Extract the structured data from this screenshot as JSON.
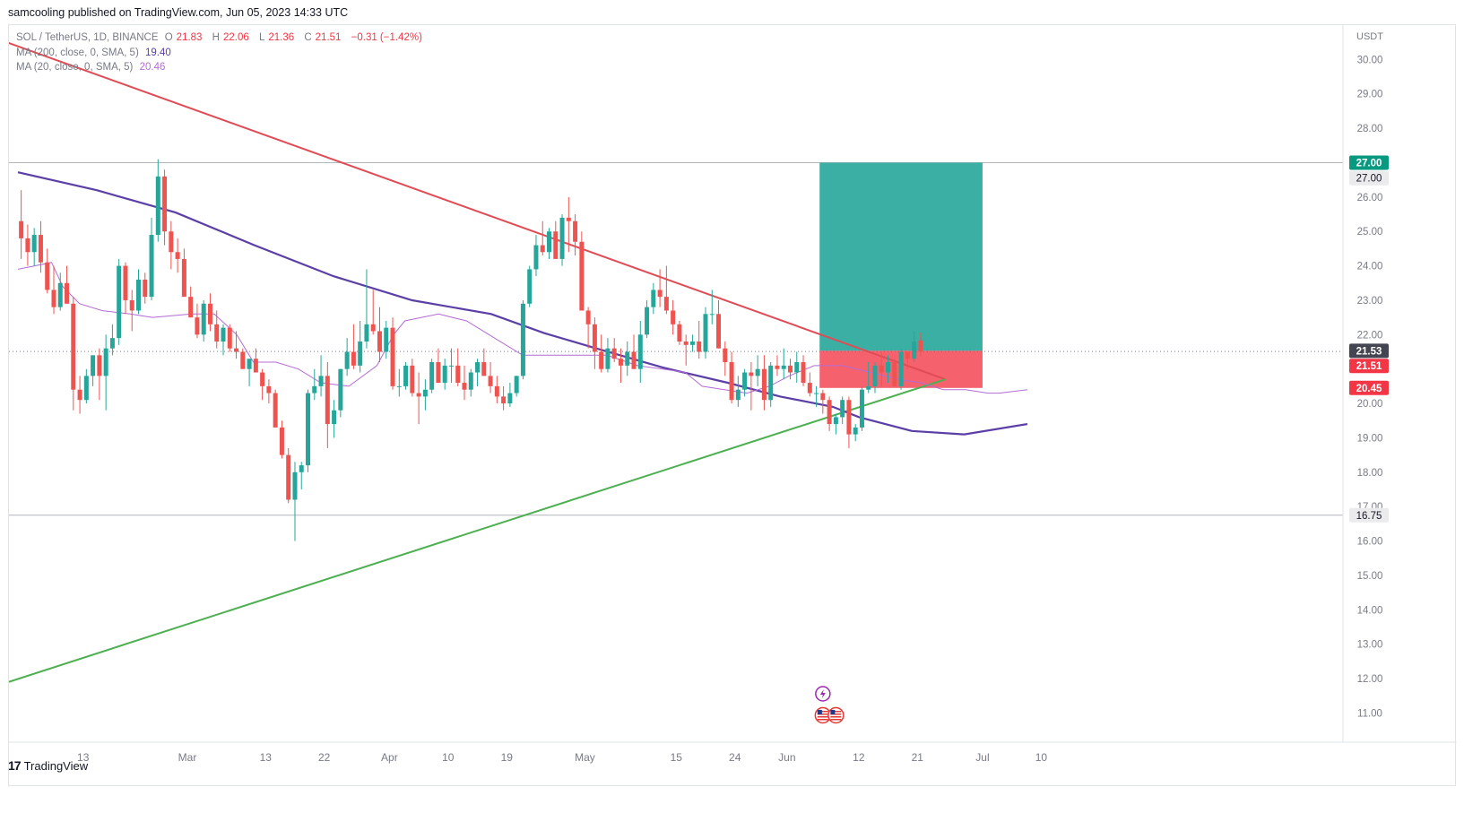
{
  "header": {
    "credit": "samcooling published on TradingView.com, Jun 05, 2023 14:33 UTC"
  },
  "legend": {
    "symbol": "SOL / TetherUS, 1D, BINANCE",
    "ohlc": {
      "o_label": "O",
      "o": "21.83",
      "h_label": "H",
      "h": "22.06",
      "l_label": "L",
      "l": "21.36",
      "c_label": "C",
      "c": "21.51",
      "change": "−0.31 (−1.42%)"
    },
    "ma200": {
      "label": "MA (200, close, 0, SMA, 5)",
      "value": "19.40"
    },
    "ma20": {
      "label": "MA (20, close, 0, SMA, 5)",
      "value": "20.46"
    }
  },
  "footer": {
    "brand": "TradingView"
  },
  "colors": {
    "up": "#26a69a",
    "down": "#ef5350",
    "resistance": "#e04c55",
    "support": "#4caf50",
    "ma200": "#5b3fa6",
    "ma20": "#b46bd6",
    "target": "#26a69a",
    "stop": "#f23645"
  },
  "chart_data": {
    "type": "candlestick",
    "currency": "USDT",
    "ylim": [
      10.15,
      31.0
    ],
    "y_ticks": [
      11,
      12,
      13,
      14,
      15,
      16,
      17,
      18,
      19,
      20,
      21,
      22,
      23,
      24,
      25,
      26,
      27,
      28,
      29,
      30
    ],
    "y_tick_labels": [
      "11.00",
      "12.00",
      "13.00",
      "14.00",
      "15.00",
      "16.00",
      "17.00",
      "18.00",
      "19.00",
      "20.00",
      "21.00",
      "22.00",
      "23.00",
      "24.00",
      "25.00",
      "26.00",
      "27.00",
      "28.00",
      "29.00",
      "30.00"
    ],
    "x_axis_labels": [
      {
        "label": "13",
        "date": "2023-02-13"
      },
      {
        "label": "Mar",
        "date": "2023-03-01"
      },
      {
        "label": "13",
        "date": "2023-03-13"
      },
      {
        "label": "22",
        "date": "2023-03-22"
      },
      {
        "label": "Apr",
        "date": "2023-04-01"
      },
      {
        "label": "10",
        "date": "2023-04-10"
      },
      {
        "label": "19",
        "date": "2023-04-19"
      },
      {
        "label": "May",
        "date": "2023-05-01"
      },
      {
        "label": "15",
        "date": "2023-05-15"
      },
      {
        "label": "24",
        "date": "2023-05-24"
      },
      {
        "label": "Jun",
        "date": "2023-06-01"
      },
      {
        "label": "12",
        "date": "2023-06-12"
      },
      {
        "label": "21",
        "date": "2023-06-21"
      },
      {
        "label": "Jul",
        "date": "2023-07-01"
      },
      {
        "label": "10",
        "date": "2023-07-10"
      }
    ],
    "start_date": "2023-02-03",
    "candles": [
      [
        25.3,
        26.2,
        24.2,
        24.8
      ],
      [
        24.8,
        25.2,
        24.0,
        24.4
      ],
      [
        24.4,
        25.1,
        24.0,
        24.9
      ],
      [
        24.9,
        25.3,
        23.8,
        24.1
      ],
      [
        24.1,
        24.5,
        23.2,
        23.3
      ],
      [
        23.3,
        24.0,
        22.6,
        22.8
      ],
      [
        22.8,
        23.8,
        22.7,
        23.5
      ],
      [
        23.5,
        24.0,
        22.9,
        22.9
      ],
      [
        22.9,
        23.1,
        19.8,
        20.4
      ],
      [
        20.4,
        20.8,
        19.7,
        20.1
      ],
      [
        20.1,
        21.0,
        20.0,
        20.8
      ],
      [
        20.8,
        21.4,
        20.5,
        21.4
      ],
      [
        21.4,
        21.6,
        20.1,
        20.8
      ],
      [
        20.8,
        22.0,
        19.8,
        21.6
      ],
      [
        21.6,
        22.3,
        21.4,
        21.9
      ],
      [
        21.9,
        24.2,
        21.7,
        24.0
      ],
      [
        24.0,
        24.1,
        22.6,
        23.0
      ],
      [
        23.0,
        23.3,
        22.1,
        22.7
      ],
      [
        22.7,
        23.9,
        22.6,
        23.6
      ],
      [
        23.6,
        23.8,
        22.9,
        23.1
      ],
      [
        23.1,
        25.4,
        23.0,
        24.9
      ],
      [
        24.9,
        27.1,
        24.7,
        26.6
      ],
      [
        26.6,
        26.8,
        24.6,
        25.0
      ],
      [
        25.0,
        25.3,
        23.9,
        24.4
      ],
      [
        24.4,
        24.8,
        23.8,
        24.2
      ],
      [
        24.2,
        24.5,
        23.3,
        23.1
      ],
      [
        23.1,
        23.4,
        22.5,
        22.5
      ],
      [
        22.5,
        22.9,
        21.9,
        22.0
      ],
      [
        22.0,
        23.0,
        21.8,
        22.9
      ],
      [
        22.9,
        23.2,
        22.1,
        22.3
      ],
      [
        22.3,
        22.7,
        21.6,
        21.8
      ],
      [
        21.8,
        22.3,
        21.4,
        22.2
      ],
      [
        22.2,
        22.3,
        21.5,
        21.6
      ],
      [
        21.6,
        22.1,
        21.3,
        21.5
      ],
      [
        21.5,
        21.6,
        21.0,
        21.0
      ],
      [
        21.0,
        21.2,
        20.5,
        21.3
      ],
      [
        21.3,
        21.6,
        20.9,
        20.9
      ],
      [
        20.9,
        21.0,
        20.1,
        20.5
      ],
      [
        20.5,
        20.7,
        20.0,
        20.3
      ],
      [
        20.3,
        20.4,
        19.5,
        19.3
      ],
      [
        19.3,
        19.5,
        18.4,
        18.5
      ],
      [
        18.5,
        18.7,
        17.1,
        17.2
      ],
      [
        17.2,
        18.3,
        16.0,
        18.0
      ],
      [
        18.0,
        18.3,
        17.5,
        18.2
      ],
      [
        18.2,
        20.4,
        18.0,
        20.3
      ],
      [
        20.3,
        21.0,
        20.1,
        20.5
      ],
      [
        20.5,
        21.4,
        20.2,
        20.8
      ],
      [
        20.8,
        21.2,
        18.7,
        19.4
      ],
      [
        19.4,
        20.1,
        19.0,
        19.8
      ],
      [
        19.8,
        21.0,
        19.6,
        21.0
      ],
      [
        21.0,
        21.9,
        20.8,
        21.5
      ],
      [
        21.5,
        22.3,
        21.0,
        21.1
      ],
      [
        21.1,
        22.4,
        20.9,
        21.8
      ],
      [
        21.8,
        23.9,
        21.6,
        22.3
      ],
      [
        22.3,
        23.3,
        22.0,
        22.1
      ],
      [
        22.1,
        22.8,
        21.2,
        21.5
      ],
      [
        21.5,
        22.4,
        21.3,
        22.2
      ],
      [
        22.2,
        22.5,
        20.4,
        20.5
      ],
      [
        20.5,
        21.0,
        20.2,
        20.5
      ],
      [
        20.5,
        21.2,
        20.4,
        21.1
      ],
      [
        21.1,
        21.3,
        20.2,
        20.3
      ],
      [
        20.3,
        20.9,
        19.4,
        20.2
      ],
      [
        20.2,
        20.7,
        19.8,
        20.4
      ],
      [
        20.4,
        21.3,
        20.3,
        21.2
      ],
      [
        21.2,
        21.6,
        20.6,
        20.6
      ],
      [
        20.6,
        21.3,
        20.4,
        21.1
      ],
      [
        21.1,
        21.6,
        20.6,
        21.1
      ],
      [
        21.1,
        21.6,
        20.5,
        20.6
      ],
      [
        20.6,
        21.1,
        20.1,
        20.4
      ],
      [
        20.4,
        21.0,
        20.2,
        20.9
      ],
      [
        20.9,
        21.3,
        20.5,
        21.2
      ],
      [
        21.2,
        21.6,
        20.8,
        20.8
      ],
      [
        20.8,
        21.2,
        20.3,
        20.5
      ],
      [
        20.5,
        20.8,
        20.0,
        20.2
      ],
      [
        20.2,
        20.5,
        19.8,
        20.0
      ],
      [
        20.0,
        20.6,
        19.9,
        20.3
      ],
      [
        20.3,
        20.8,
        20.2,
        20.8
      ],
      [
        20.8,
        23.0,
        20.7,
        22.9
      ],
      [
        22.9,
        24.0,
        22.8,
        23.9
      ],
      [
        23.9,
        24.9,
        23.7,
        24.6
      ],
      [
        24.6,
        25.3,
        24.3,
        24.4
      ],
      [
        24.4,
        25.1,
        24.2,
        25.0
      ],
      [
        25.0,
        25.3,
        24.3,
        24.2
      ],
      [
        24.2,
        25.5,
        24.0,
        25.4
      ],
      [
        25.4,
        26.0,
        24.4,
        25.3
      ],
      [
        25.3,
        25.5,
        24.3,
        24.7
      ],
      [
        24.7,
        25.0,
        22.9,
        22.7
      ],
      [
        22.7,
        22.8,
        21.6,
        22.3
      ],
      [
        22.3,
        22.5,
        21.0,
        21.5
      ],
      [
        21.5,
        22.0,
        20.9,
        21.0
      ],
      [
        21.0,
        21.9,
        20.9,
        21.6
      ],
      [
        21.6,
        21.9,
        21.2,
        21.3
      ],
      [
        21.3,
        21.6,
        20.6,
        21.1
      ],
      [
        21.1,
        21.8,
        20.8,
        21.5
      ],
      [
        21.5,
        22.0,
        21.0,
        21.0
      ],
      [
        21.0,
        22.4,
        20.6,
        22.0
      ],
      [
        22.0,
        23.0,
        21.9,
        22.8
      ],
      [
        22.8,
        23.5,
        22.6,
        23.3
      ],
      [
        23.3,
        23.9,
        22.8,
        23.1
      ],
      [
        23.1,
        24.0,
        22.6,
        22.7
      ],
      [
        22.7,
        23.0,
        22.0,
        22.3
      ],
      [
        22.3,
        22.4,
        21.7,
        21.8
      ],
      [
        21.8,
        22.0,
        21.1,
        21.7
      ],
      [
        21.7,
        22.0,
        21.5,
        21.8
      ],
      [
        21.8,
        22.4,
        21.3,
        21.5
      ],
      [
        21.5,
        22.8,
        21.3,
        22.6
      ],
      [
        22.6,
        23.3,
        22.3,
        22.6
      ],
      [
        22.6,
        23.0,
        21.6,
        21.6
      ],
      [
        21.6,
        21.8,
        20.8,
        21.2
      ],
      [
        21.2,
        21.5,
        20.0,
        20.1
      ],
      [
        20.1,
        20.8,
        19.9,
        20.4
      ],
      [
        20.4,
        21.0,
        20.2,
        20.9
      ],
      [
        20.9,
        21.2,
        19.8,
        20.8
      ],
      [
        20.8,
        21.4,
        20.5,
        21.0
      ],
      [
        21.0,
        21.4,
        19.8,
        20.1
      ],
      [
        20.1,
        21.2,
        19.9,
        21.1
      ],
      [
        21.1,
        21.4,
        20.8,
        21.0
      ],
      [
        21.0,
        21.6,
        20.7,
        21.1
      ],
      [
        21.1,
        21.3,
        20.7,
        20.9
      ],
      [
        20.9,
        21.5,
        20.6,
        21.2
      ],
      [
        21.2,
        21.4,
        20.5,
        20.6
      ],
      [
        20.6,
        20.9,
        20.2,
        20.3
      ],
      [
        20.3,
        20.5,
        19.9,
        20.3
      ],
      [
        20.3,
        20.4,
        19.7,
        20.1
      ],
      [
        20.1,
        20.2,
        19.2,
        19.4
      ],
      [
        19.4,
        19.7,
        19.1,
        19.6
      ],
      [
        19.6,
        20.2,
        19.4,
        20.1
      ],
      [
        20.1,
        20.2,
        18.7,
        19.1
      ],
      [
        19.1,
        19.4,
        18.9,
        19.3
      ],
      [
        19.3,
        20.5,
        19.2,
        20.4
      ],
      [
        20.4,
        21.2,
        20.3,
        20.5
      ],
      [
        20.5,
        21.2,
        20.3,
        21.1
      ],
      [
        21.1,
        21.5,
        20.5,
        20.9
      ],
      [
        20.9,
        21.4,
        20.6,
        21.2
      ],
      [
        21.2,
        21.3,
        20.5,
        20.5
      ],
      [
        20.5,
        21.6,
        20.4,
        21.5
      ],
      [
        21.5,
        21.5,
        21.0,
        21.3
      ],
      [
        21.3,
        22.1,
        21.2,
        21.8
      ],
      [
        21.83,
        22.06,
        21.36,
        21.51
      ]
    ],
    "ma200": [
      [
        0,
        26.72
      ],
      [
        15,
        26.2
      ],
      [
        30,
        25.55
      ],
      [
        45,
        24.6
      ],
      [
        60,
        23.7
      ],
      [
        75,
        23.0
      ],
      [
        90,
        22.6
      ],
      [
        100,
        22.05
      ],
      [
        110,
        21.6
      ],
      [
        123,
        21.03
      ],
      [
        135,
        20.6
      ],
      [
        145,
        20.2
      ],
      [
        155,
        19.9
      ],
      [
        160,
        19.6
      ],
      [
        170,
        19.2
      ],
      [
        180,
        19.1
      ],
      [
        192,
        19.4
      ]
    ],
    "ma20": [
      [
        0,
        23.9
      ],
      [
        6,
        24.0
      ],
      [
        12,
        24.1
      ],
      [
        16,
        23.4
      ],
      [
        22,
        22.9
      ],
      [
        30,
        22.7
      ],
      [
        40,
        22.6
      ],
      [
        48,
        22.5
      ],
      [
        62,
        22.6
      ],
      [
        70,
        22.6
      ],
      [
        78,
        22.0
      ],
      [
        84,
        21.2
      ],
      [
        92,
        21.2
      ],
      [
        100,
        21.0
      ],
      [
        108,
        20.6
      ],
      [
        118,
        20.5
      ],
      [
        128,
        21.1
      ],
      [
        134,
        22.0
      ],
      [
        138,
        22.4
      ],
      [
        150,
        22.6
      ],
      [
        160,
        22.4
      ],
      [
        170,
        21.9
      ],
      [
        180,
        21.4
      ],
      [
        190,
        21.4
      ],
      [
        200,
        21.4
      ],
      [
        210,
        21.4
      ],
      [
        221,
        21.1
      ],
      [
        230,
        21.0
      ],
      [
        238,
        20.9
      ],
      [
        244,
        20.5
      ],
      [
        252,
        20.4
      ],
      [
        260,
        20.3
      ],
      [
        268,
        20.5
      ],
      [
        275,
        20.8
      ],
      [
        284,
        21.1
      ],
      [
        294,
        21.1
      ],
      [
        304,
        20.9
      ],
      [
        314,
        20.7
      ],
      [
        322,
        20.6
      ],
      [
        330,
        20.4
      ],
      [
        338,
        20.4
      ],
      [
        346,
        20.3
      ],
      [
        350,
        20.3
      ],
      [
        360,
        20.4
      ]
    ],
    "resistance_line": {
      "from": [
        -12,
        31.2
      ],
      "to": [
        142.3,
        20.7
      ]
    },
    "support_line": {
      "from": [
        -8,
        11.5
      ],
      "to": [
        142.3,
        20.7
      ]
    },
    "horizontal_levels": [
      27.0,
      16.75
    ],
    "current_price": 21.51,
    "position": {
      "entry": 21.53,
      "target": 27.0,
      "stop": 20.45,
      "start_index": 123,
      "end_index": 148
    },
    "price_labels": [
      {
        "text": "27.00",
        "price": 27.0,
        "style": "target"
      },
      {
        "text": "27.00",
        "price": 26.55,
        "style": "level"
      },
      {
        "text": "21.53",
        "price": 21.53,
        "style": "entry"
      },
      {
        "text": "21.51",
        "price": 21.09,
        "style": "last"
      },
      {
        "text": "20.45",
        "price": 20.45,
        "style": "stop"
      },
      {
        "text": "16.75",
        "price": 16.75,
        "style": "level"
      }
    ],
    "event_icons": [
      {
        "type": "lightning",
        "index": 123.5
      },
      {
        "type": "us-flag",
        "index": 123.5
      },
      {
        "type": "us-flag",
        "index": 125.5
      }
    ]
  }
}
